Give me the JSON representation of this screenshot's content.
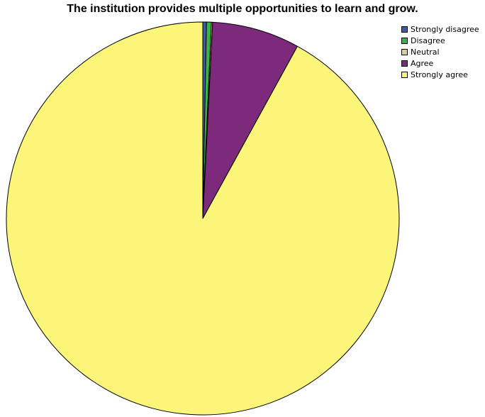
{
  "chart_data": {
    "type": "pie",
    "title": "The institution provides multiple opportunities to learn and grow.",
    "legend_position": "top-right",
    "start": "top",
    "direction": "clockwise",
    "slices": [
      {
        "label": "Strongly disagree",
        "value": 0.3,
        "color": "#3d5aa6"
      },
      {
        "label": "Disagree",
        "value": 0.4,
        "color": "#3cb34a"
      },
      {
        "label": "Neutral",
        "value": 0.1,
        "color": "#d7cfa0"
      },
      {
        "label": "Agree",
        "value": 7.2,
        "color": "#7d2a7c"
      },
      {
        "label": "Strongly agree",
        "value": 92.0,
        "color": "#fbf67a"
      }
    ]
  }
}
